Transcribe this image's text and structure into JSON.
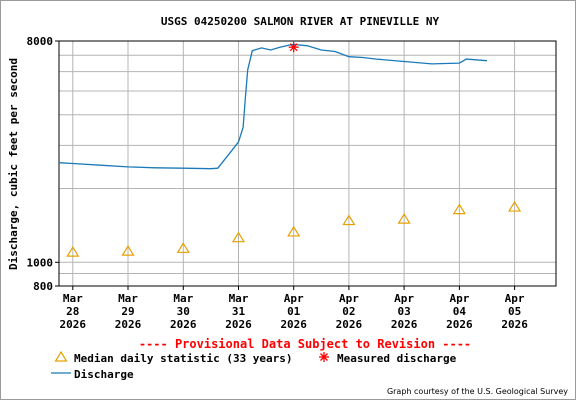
{
  "chart_data": {
    "type": "line",
    "title": "USGS 04250200 SALMON RIVER AT PINEVILLE NY",
    "ylabel": "Discharge, cubic feet per second",
    "xlabel": "",
    "y_scale": "log",
    "ylim": [
      800,
      8000
    ],
    "yticks": [
      {
        "value": 800,
        "label": "800"
      },
      {
        "value": 1000,
        "label": "1000"
      },
      {
        "value": 8000,
        "label": "8000"
      }
    ],
    "y_gridlines": [
      800,
      900,
      1000,
      2000,
      3000,
      4000,
      5000,
      6000,
      7000,
      8000
    ],
    "xlim": [
      "2026-03-27T18:00",
      "2026-04-05T18:00"
    ],
    "xticks": [
      {
        "date": "2026-03-28",
        "label": [
          "Mar",
          "28",
          "2026"
        ]
      },
      {
        "date": "2026-03-29",
        "label": [
          "Mar",
          "29",
          "2026"
        ]
      },
      {
        "date": "2026-03-30",
        "label": [
          "Mar",
          "30",
          "2026"
        ]
      },
      {
        "date": "2026-03-31",
        "label": [
          "Mar",
          "31",
          "2026"
        ]
      },
      {
        "date": "2026-04-01",
        "label": [
          "Apr",
          "01",
          "2026"
        ]
      },
      {
        "date": "2026-04-02",
        "label": [
          "Apr",
          "02",
          "2026"
        ]
      },
      {
        "date": "2026-04-03",
        "label": [
          "Apr",
          "03",
          "2026"
        ]
      },
      {
        "date": "2026-04-04",
        "label": [
          "Apr",
          "04",
          "2026"
        ]
      },
      {
        "date": "2026-04-05",
        "label": [
          "Apr",
          "05",
          "2026"
        ]
      }
    ],
    "grid": true,
    "series": [
      {
        "name": "Discharge",
        "kind": "line",
        "color": "#1a7ab8",
        "points": [
          [
            "2026-03-27T18:00",
            2550
          ],
          [
            "2026-03-28T00:00",
            2530
          ],
          [
            "2026-03-28T12:00",
            2490
          ],
          [
            "2026-03-29T00:00",
            2450
          ],
          [
            "2026-03-29T12:00",
            2430
          ],
          [
            "2026-03-30T00:00",
            2420
          ],
          [
            "2026-03-30T12:00",
            2410
          ],
          [
            "2026-03-30T15:00",
            2420
          ],
          [
            "2026-03-30T21:00",
            2850
          ],
          [
            "2026-03-31T00:00",
            3100
          ],
          [
            "2026-03-31T02:00",
            3550
          ],
          [
            "2026-03-31T03:00",
            4700
          ],
          [
            "2026-03-31T04:00",
            6100
          ],
          [
            "2026-03-31T06:00",
            7300
          ],
          [
            "2026-03-31T10:00",
            7500
          ],
          [
            "2026-03-31T14:00",
            7350
          ],
          [
            "2026-03-31T18:00",
            7550
          ],
          [
            "2026-03-31T22:00",
            7700
          ],
          [
            "2026-04-01T00:00",
            7750
          ],
          [
            "2026-04-01T06:00",
            7650
          ],
          [
            "2026-04-01T12:00",
            7350
          ],
          [
            "2026-04-01T18:00",
            7250
          ],
          [
            "2026-04-02T00:00",
            6900
          ],
          [
            "2026-04-02T06:00",
            6850
          ],
          [
            "2026-04-02T12:00",
            6750
          ],
          [
            "2026-04-03T00:00",
            6600
          ],
          [
            "2026-04-03T12:00",
            6450
          ],
          [
            "2026-04-04T00:00",
            6500
          ],
          [
            "2026-04-04T03:00",
            6750
          ],
          [
            "2026-04-04T12:00",
            6650
          ]
        ]
      },
      {
        "name": "Median daily statistic (33 years)",
        "kind": "marker",
        "marker": "triangle",
        "color": "#e6a000",
        "points": [
          [
            "2026-03-28T00:00",
            1100
          ],
          [
            "2026-03-29T00:00",
            1110
          ],
          [
            "2026-03-30T00:00",
            1140
          ],
          [
            "2026-03-31T00:00",
            1260
          ],
          [
            "2026-04-01T00:00",
            1330
          ],
          [
            "2026-04-02T00:00",
            1480
          ],
          [
            "2026-04-03T00:00",
            1500
          ],
          [
            "2026-04-04T00:00",
            1640
          ],
          [
            "2026-04-05T00:00",
            1680
          ]
        ]
      },
      {
        "name": "Measured discharge",
        "kind": "marker",
        "marker": "asterisk",
        "color": "#ff0000",
        "points": [
          [
            "2026-04-01T00:00",
            7550
          ]
        ]
      }
    ],
    "annotations": [
      "---- Provisional Data Subject to Revision ----"
    ],
    "legend": {
      "placement": "bottom",
      "entries": [
        "Median daily statistic (33 years)",
        "Measured discharge",
        "Discharge"
      ]
    },
    "credit": "Graph courtesy of the U.S. Geological Survey"
  },
  "colors": {
    "frame": "#9a9a9a",
    "grid": "#b4b4b4",
    "axis": "#000000",
    "provisional_text": "#ff0000"
  }
}
